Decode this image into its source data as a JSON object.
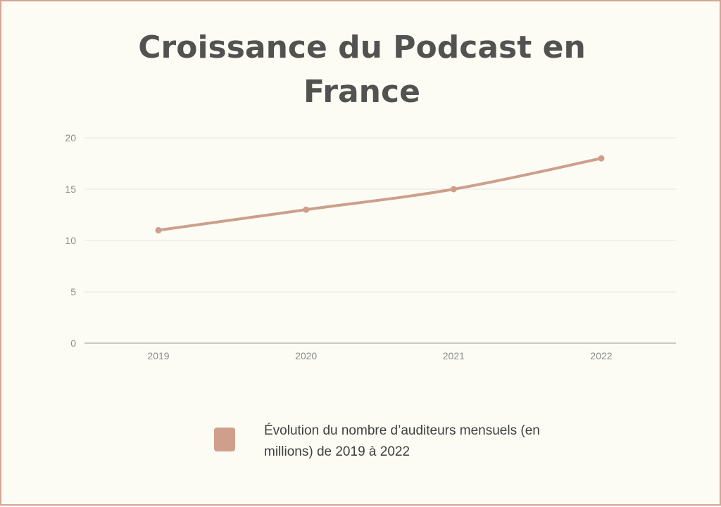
{
  "chart_data": {
    "type": "line",
    "title": "Croissance du Podcast en France",
    "xlabel": "",
    "ylabel": "",
    "categories": [
      "2019",
      "2020",
      "2021",
      "2022"
    ],
    "series": [
      {
        "name": "Évolution du nombre d’auditeurs mensuels (en millions) de 2019 à 2022",
        "values": [
          11,
          13,
          15,
          18
        ]
      }
    ],
    "ylim": [
      0,
      20
    ],
    "yticks": [
      0,
      5,
      10,
      15,
      20
    ],
    "grid": true,
    "legend": "bottom",
    "colors": {
      "line": "#cd9f8b",
      "grid": "#e3e3dd",
      "axis": "#b9b9b4",
      "background": "#fcfcf5",
      "border": "#d4a594"
    }
  }
}
